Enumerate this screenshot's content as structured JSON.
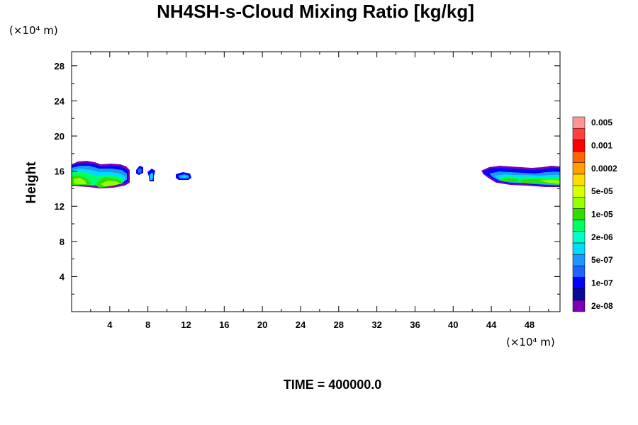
{
  "chart_data": {
    "type": "contour",
    "title": "NH4SH-s-Cloud Mixing Ratio [kg/kg]",
    "ylabel": "Height",
    "y_unit": "(×10⁴ m)",
    "x_unit": "(×10⁴ m)",
    "x_ticks": [
      "4",
      "8",
      "12",
      "16",
      "20",
      "24",
      "28",
      "32",
      "36",
      "40",
      "44",
      "48"
    ],
    "y_ticks": [
      "4",
      "8",
      "12",
      "16",
      "20",
      "24",
      "28"
    ],
    "xlim": [
      0,
      51.2
    ],
    "ylim": [
      0,
      29.6
    ],
    "time_label": "TIME = 400000.0",
    "colorbar": {
      "colors": [
        "#7b00b4",
        "#0a0a96",
        "#0000ff",
        "#1e64ff",
        "#1e96ff",
        "#00dcff",
        "#00ffc8",
        "#00ff64",
        "#32dc00",
        "#96ff00",
        "#dcff00",
        "#ffdc00",
        "#ffa000",
        "#ff6400",
        "#ff0000",
        "#ff4040",
        "#ff9696"
      ],
      "labels": [
        "2e-08",
        "1e-07",
        "5e-07",
        "2e-06",
        "1e-05",
        "5e-05",
        "0.0002",
        "0.001",
        "0.005"
      ]
    },
    "features": [
      {
        "name": "left-cloud-band",
        "x": [
          0,
          6
        ],
        "height": [
          14.3,
          17.2
        ],
        "max_level": "5e-05"
      },
      {
        "name": "blob-1",
        "x": [
          6.8,
          7.6
        ],
        "height": [
          15.6,
          16.6
        ],
        "max_level": "1e-07"
      },
      {
        "name": "blob-2",
        "x": [
          8.1,
          8.8
        ],
        "height": [
          15,
          16.4
        ],
        "max_level": "5e-07"
      },
      {
        "name": "blob-3",
        "x": [
          10.8,
          12.5
        ],
        "height": [
          15.2,
          16.1
        ],
        "max_level": "5e-07"
      },
      {
        "name": "right-cloud-band",
        "x": [
          43,
          51.2
        ],
        "height": [
          14.3,
          16.8
        ],
        "max_level": "5e-05"
      }
    ]
  }
}
